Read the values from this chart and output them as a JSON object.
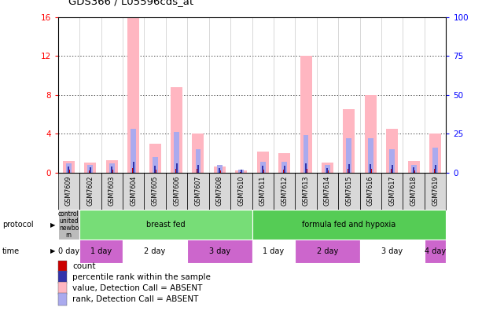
{
  "title": "GDS366 / L05596cds_at",
  "samples": [
    "GSM7609",
    "GSM7602",
    "GSM7603",
    "GSM7604",
    "GSM7605",
    "GSM7606",
    "GSM7607",
    "GSM7608",
    "GSM7610",
    "GSM7611",
    "GSM7612",
    "GSM7613",
    "GSM7614",
    "GSM7615",
    "GSM7616",
    "GSM7617",
    "GSM7618",
    "GSM7619"
  ],
  "absent_values": [
    1.2,
    1.0,
    1.3,
    16.0,
    3.0,
    8.8,
    4.0,
    0.6,
    0.2,
    2.2,
    2.0,
    12.0,
    1.0,
    6.5,
    8.0,
    4.5,
    1.2,
    4.0
  ],
  "absent_ranks": [
    6,
    5,
    6,
    28,
    10,
    26,
    15,
    5,
    2,
    7,
    7,
    24,
    5,
    22,
    22,
    15,
    5,
    16
  ],
  "count_values": [
    0.3,
    0.25,
    0.3,
    0.5,
    0.3,
    0.4,
    0.35,
    0.2,
    0.1,
    0.3,
    0.3,
    0.4,
    0.2,
    0.4,
    0.4,
    0.35,
    0.25,
    0.35
  ],
  "rank_values": [
    4,
    3.5,
    4,
    7,
    4.5,
    6,
    5,
    3,
    2,
    4.5,
    4.5,
    6,
    3,
    5.5,
    5.5,
    5,
    3.5,
    5
  ],
  "protocol_groups": [
    {
      "label": "control\nunited\nnewbo\nrn",
      "start": 0,
      "end": 1,
      "color": "#bbbbbb"
    },
    {
      "label": "breast fed",
      "start": 1,
      "end": 9,
      "color": "#77dd77"
    },
    {
      "label": "formula fed and hypoxia",
      "start": 9,
      "end": 18,
      "color": "#55cc55"
    }
  ],
  "time_groups": [
    {
      "label": "0 day",
      "start": 0,
      "end": 1,
      "color": "#ffffff"
    },
    {
      "label": "1 day",
      "start": 1,
      "end": 3,
      "color": "#cc66cc"
    },
    {
      "label": "2 day",
      "start": 3,
      "end": 6,
      "color": "#ffffff"
    },
    {
      "label": "3 day",
      "start": 6,
      "end": 9,
      "color": "#cc66cc"
    },
    {
      "label": "1 day",
      "start": 9,
      "end": 11,
      "color": "#ffffff"
    },
    {
      "label": "2 day",
      "start": 11,
      "end": 14,
      "color": "#cc66cc"
    },
    {
      "label": "3 day",
      "start": 14,
      "end": 17,
      "color": "#ffffff"
    },
    {
      "label": "4 day",
      "start": 17,
      "end": 18,
      "color": "#cc66cc"
    }
  ],
  "ylim_left": [
    0,
    16
  ],
  "ylim_right": [
    0,
    100
  ],
  "yticks_left": [
    0,
    4,
    8,
    12,
    16
  ],
  "yticks_right": [
    0,
    25,
    50,
    75,
    100
  ],
  "absent_color": "#ffb6c1",
  "absent_rank_color": "#aaaaee",
  "count_color": "#cc0000",
  "rank_color": "#3333aa",
  "sample_bg": "#d8d8d8",
  "legend_items": [
    {
      "color": "#cc0000",
      "label": "count",
      "marker": "s"
    },
    {
      "color": "#3333aa",
      "label": "percentile rank within the sample",
      "marker": "s"
    },
    {
      "color": "#ffb6c1",
      "label": "value, Detection Call = ABSENT",
      "marker": "s"
    },
    {
      "color": "#aaaaee",
      "label": "rank, Detection Call = ABSENT",
      "marker": "s"
    }
  ]
}
